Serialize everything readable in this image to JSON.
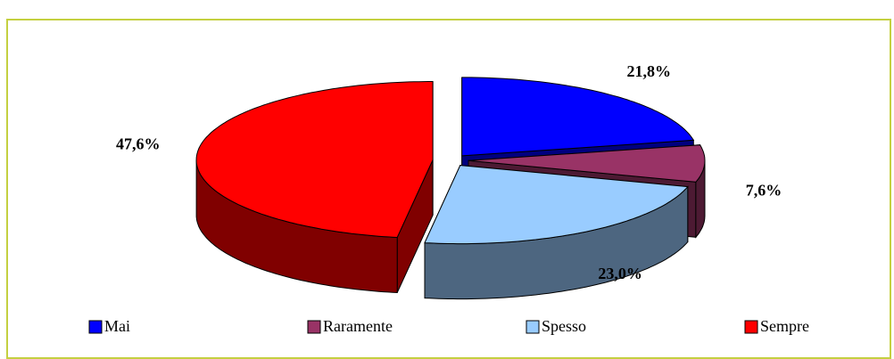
{
  "chart_data": {
    "type": "pie3d",
    "categories": [
      "Mai",
      "Raramente",
      "Spesso",
      "Sempre"
    ],
    "values": [
      21.8,
      7.6,
      23.0,
      47.6
    ],
    "value_labels": [
      "21,8%",
      "7,6%",
      "23,0%",
      "47,6%"
    ],
    "colors": [
      "#0000ff",
      "#993366",
      "#99ccff",
      "#ff0000"
    ],
    "side_colors": [
      "#00007f",
      "#4d1a33",
      "#4d6680",
      "#800000"
    ],
    "legend": "bottom"
  }
}
